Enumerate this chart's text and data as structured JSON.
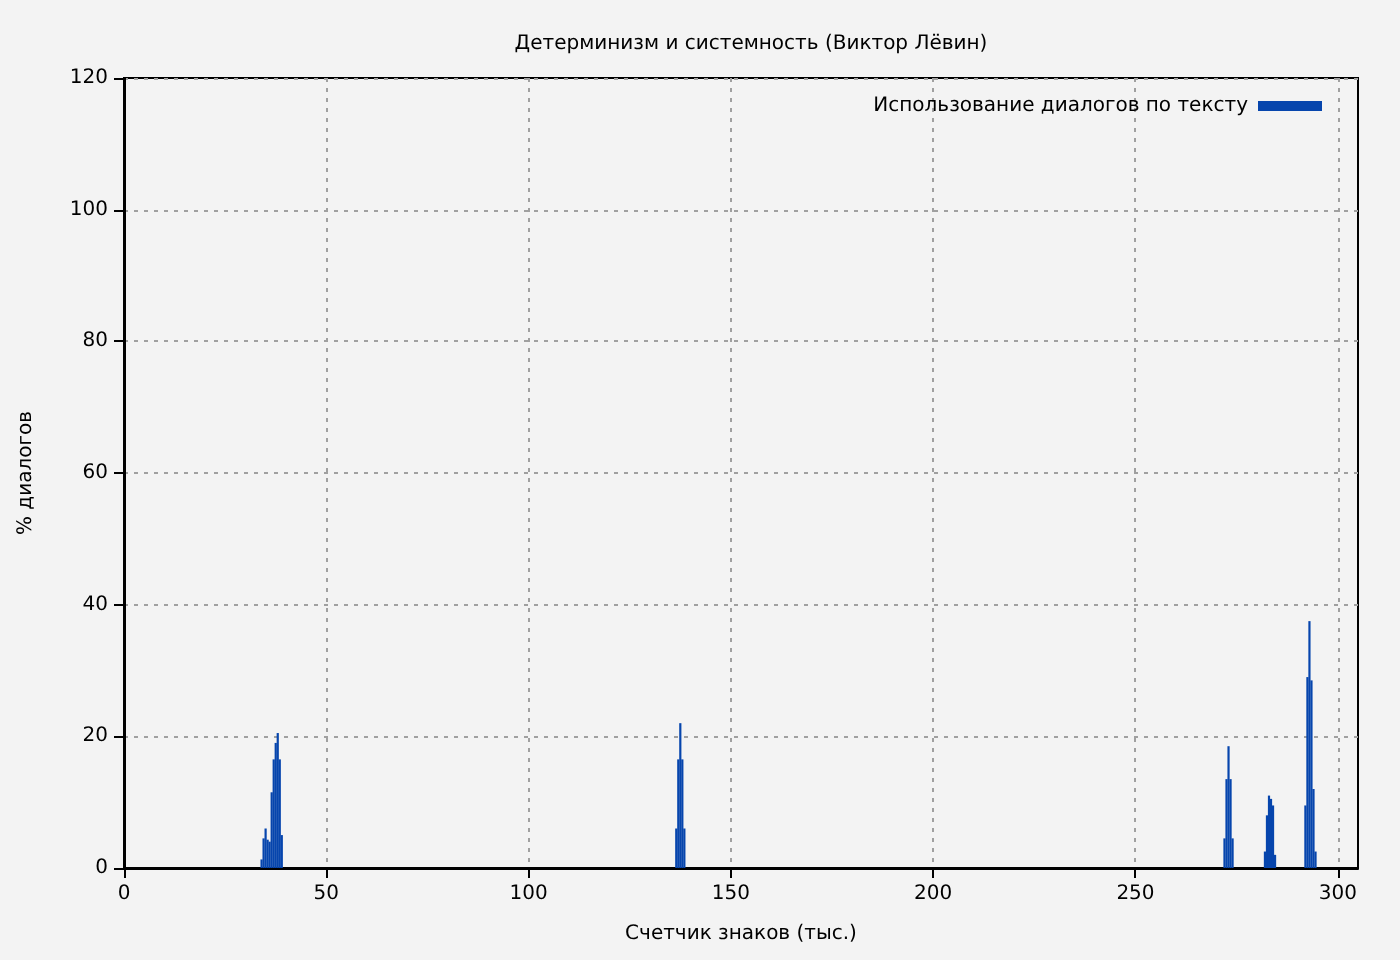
{
  "chart_data": {
    "type": "bar",
    "title": "Детерминизм и системность (Виктор Лёвин)",
    "xlabel": "Счетчик знаков (тыс.)",
    "ylabel": "% диалогов",
    "x": [
      34,
      34.5,
      35,
      35.5,
      36,
      36.5,
      37,
      37.5,
      38,
      38.5,
      39,
      136.5,
      137,
      137.5,
      138,
      138.5,
      272,
      272.5,
      273,
      273.5,
      274,
      282,
      282.5,
      283,
      283.5,
      284,
      284.5,
      292,
      292.5,
      293,
      293.5,
      294,
      294.5
    ],
    "series": [
      {
        "name": "Использование диалогов по тексту",
        "color": "#0645ad",
        "values": [
          1.3,
          4.5,
          6,
          4.3,
          4,
          11.5,
          16.5,
          19,
          20.5,
          16.5,
          5,
          6,
          16.5,
          22,
          16.5,
          6,
          4.5,
          13.5,
          18.5,
          13.5,
          4.5,
          2.5,
          8,
          11,
          10.5,
          9.5,
          2,
          9.5,
          29,
          37.5,
          28.5,
          12,
          2.5
        ]
      }
    ],
    "xlim": [
      0,
      305
    ],
    "xticks": [
      0,
      50,
      100,
      150,
      200,
      250,
      300
    ],
    "ylim": [
      0,
      120
    ],
    "yticks": [
      0,
      20,
      40,
      60,
      80,
      100,
      120
    ],
    "grid": true,
    "legend": "top right"
  }
}
